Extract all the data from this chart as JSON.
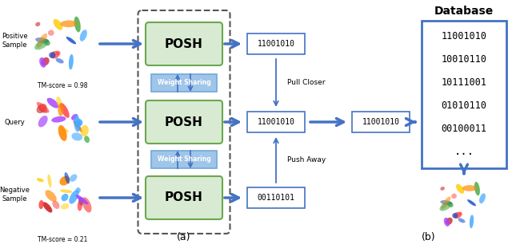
{
  "bg_color": "#ffffff",
  "blue": "#4472c4",
  "blue_light": "#6fa8dc",
  "green_fc": "#d9ead3",
  "green_ec": "#6aa84f",
  "weight_fc": "#9fc5e8",
  "weight_ec": "#6fa8dc",
  "bin_ec": "#4472c4",
  "db_ec": "#4472c4",
  "posh_labels": [
    "POSH",
    "POSH",
    "POSH"
  ],
  "weight_label": "Weight Sharing",
  "binary_codes": [
    "11001010",
    "11001010",
    "00110101"
  ],
  "db_codes": [
    "11001010",
    "10010110",
    "10111001",
    "01010110",
    "00100011",
    "..."
  ],
  "pull_label": "Pull Closer",
  "push_label": "Push Away",
  "query_binary": "11001010",
  "row_labels": [
    "Positive\nSample",
    "Query",
    "Negative\nSample"
  ],
  "tm_score_pos": "TM-score = 0.98",
  "tm_score_neg": "TM-score = 0.21",
  "sub_a": "(a)",
  "sub_b": "(b)",
  "db_title": "Database",
  "fig_width": 6.4,
  "fig_height": 3.06,
  "dpi": 100
}
